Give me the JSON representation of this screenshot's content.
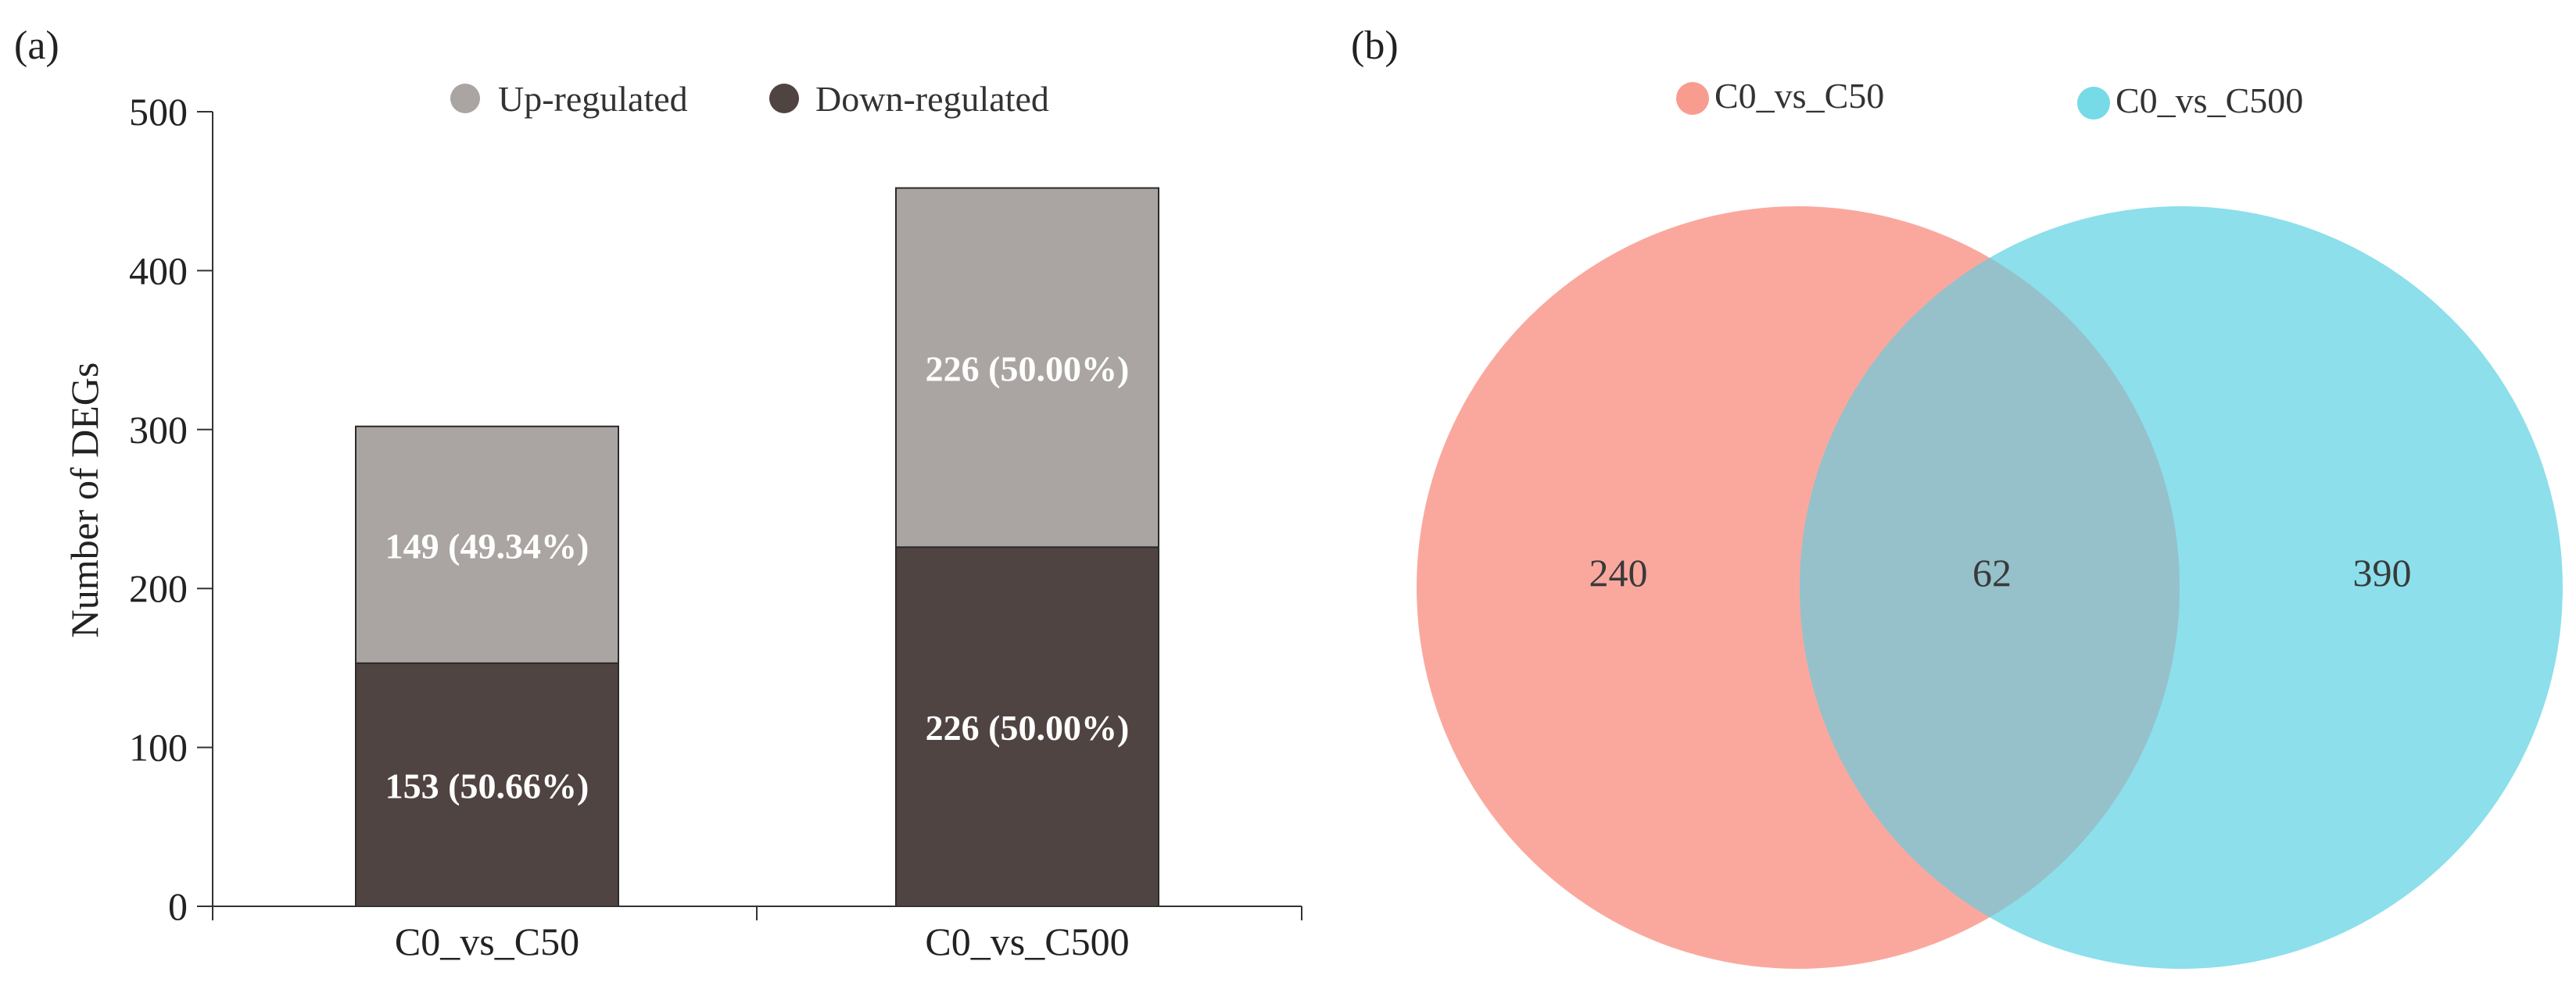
{
  "panel_labels": {
    "a": "(a)",
    "b": "(b)"
  },
  "colors": {
    "up": "#aaa5a2",
    "down": "#504442",
    "venn_left": "#f88b7d",
    "venn_right": "#5fd3e3",
    "overlap": "#96c1cb",
    "axis": "#333333",
    "text": "#333333"
  },
  "chart_data": [
    {
      "type": "bar",
      "stacked": true,
      "categories": [
        "C0_vs_C50",
        "C0_vs_C500"
      ],
      "series": [
        {
          "name": "Down-regulated",
          "values": [
            153,
            226
          ],
          "labels": [
            "153 (50.66%)",
            "226 (50.00%)"
          ]
        },
        {
          "name": "Up-regulated",
          "values": [
            149,
            226
          ],
          "labels": [
            "149 (49.34%)",
            "226 (50.00%)"
          ]
        }
      ],
      "ylabel": "Number of DEGs",
      "ylim": [
        0,
        500
      ],
      "yticks": [
        "0",
        "100",
        "200",
        "300",
        "400",
        "500"
      ],
      "legend": [
        "Up-regulated",
        "Down-regulated"
      ],
      "legend_position": "top",
      "grid": false
    },
    {
      "type": "venn",
      "sets": [
        "C0_vs_C50",
        "C0_vs_C500"
      ],
      "regions": {
        "left_only": "240",
        "both": "62",
        "right_only": "390"
      },
      "legend_position": "top"
    }
  ]
}
